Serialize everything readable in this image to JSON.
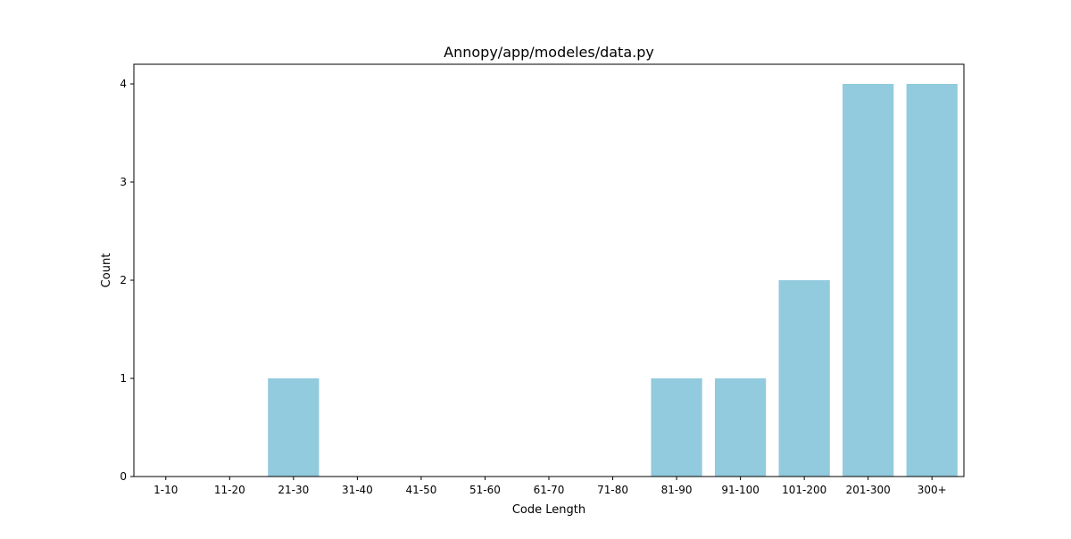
{
  "chart_data": {
    "type": "bar",
    "title": "Annopy/app/modeles/data.py",
    "xlabel": "Code Length",
    "ylabel": "Count",
    "categories": [
      "1-10",
      "11-20",
      "21-30",
      "31-40",
      "41-50",
      "51-60",
      "61-70",
      "71-80",
      "81-90",
      "91-100",
      "101-200",
      "201-300",
      "300+"
    ],
    "values": [
      0,
      0,
      1,
      0,
      0,
      0,
      0,
      0,
      1,
      1,
      2,
      4,
      4
    ],
    "ylim": [
      0,
      4.2
    ],
    "yticks": [
      0,
      1,
      2,
      3,
      4
    ],
    "grid": false,
    "legend": "none",
    "bar_color": "#92cade"
  }
}
